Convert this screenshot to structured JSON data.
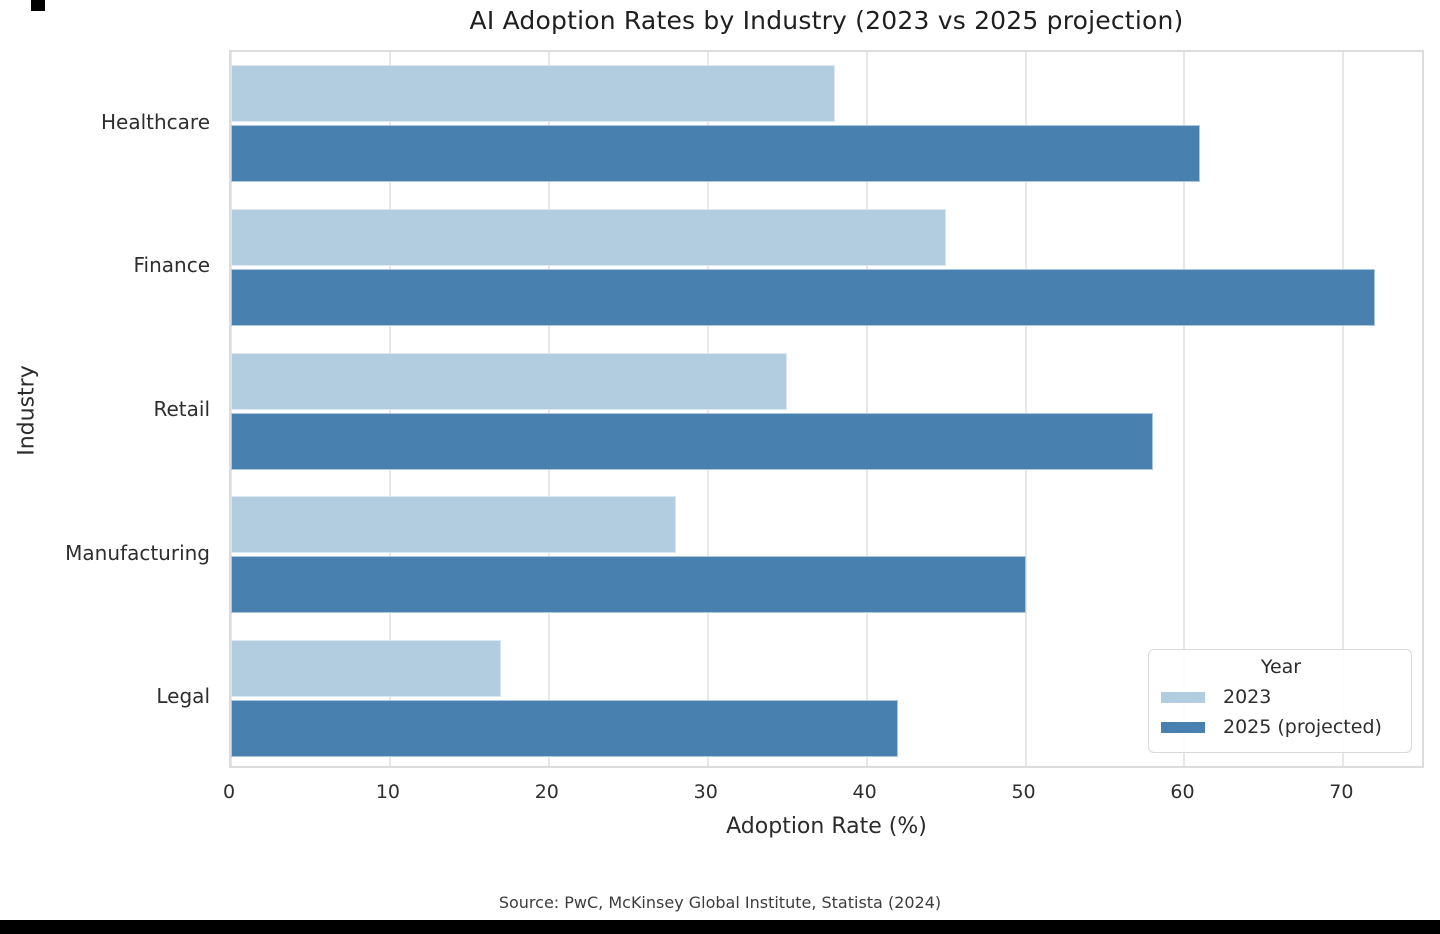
{
  "chart_data": {
    "type": "bar",
    "orientation": "horizontal",
    "title": "AI Adoption Rates by Industry (2023 vs 2025 projection)",
    "xlabel": "Adoption Rate (%)",
    "ylabel": "Industry",
    "categories": [
      "Healthcare",
      "Finance",
      "Retail",
      "Manufacturing",
      "Legal"
    ],
    "series": [
      {
        "name": "2023",
        "color": "#b2cce0",
        "values": [
          38,
          45,
          35,
          28,
          17
        ]
      },
      {
        "name": "2025 (projected)",
        "color": "#4880b0",
        "values": [
          61,
          72,
          58,
          50,
          42
        ]
      }
    ],
    "xlim": [
      0,
      75.2
    ],
    "xticks": [
      0,
      10,
      20,
      30,
      40,
      50,
      60,
      70
    ],
    "grid": "vertical-light",
    "legend": {
      "title": "Year",
      "position": "lower right"
    }
  },
  "footer": {
    "source": "Source: PwC, McKinsey Global Institute, Statista (2024)"
  }
}
